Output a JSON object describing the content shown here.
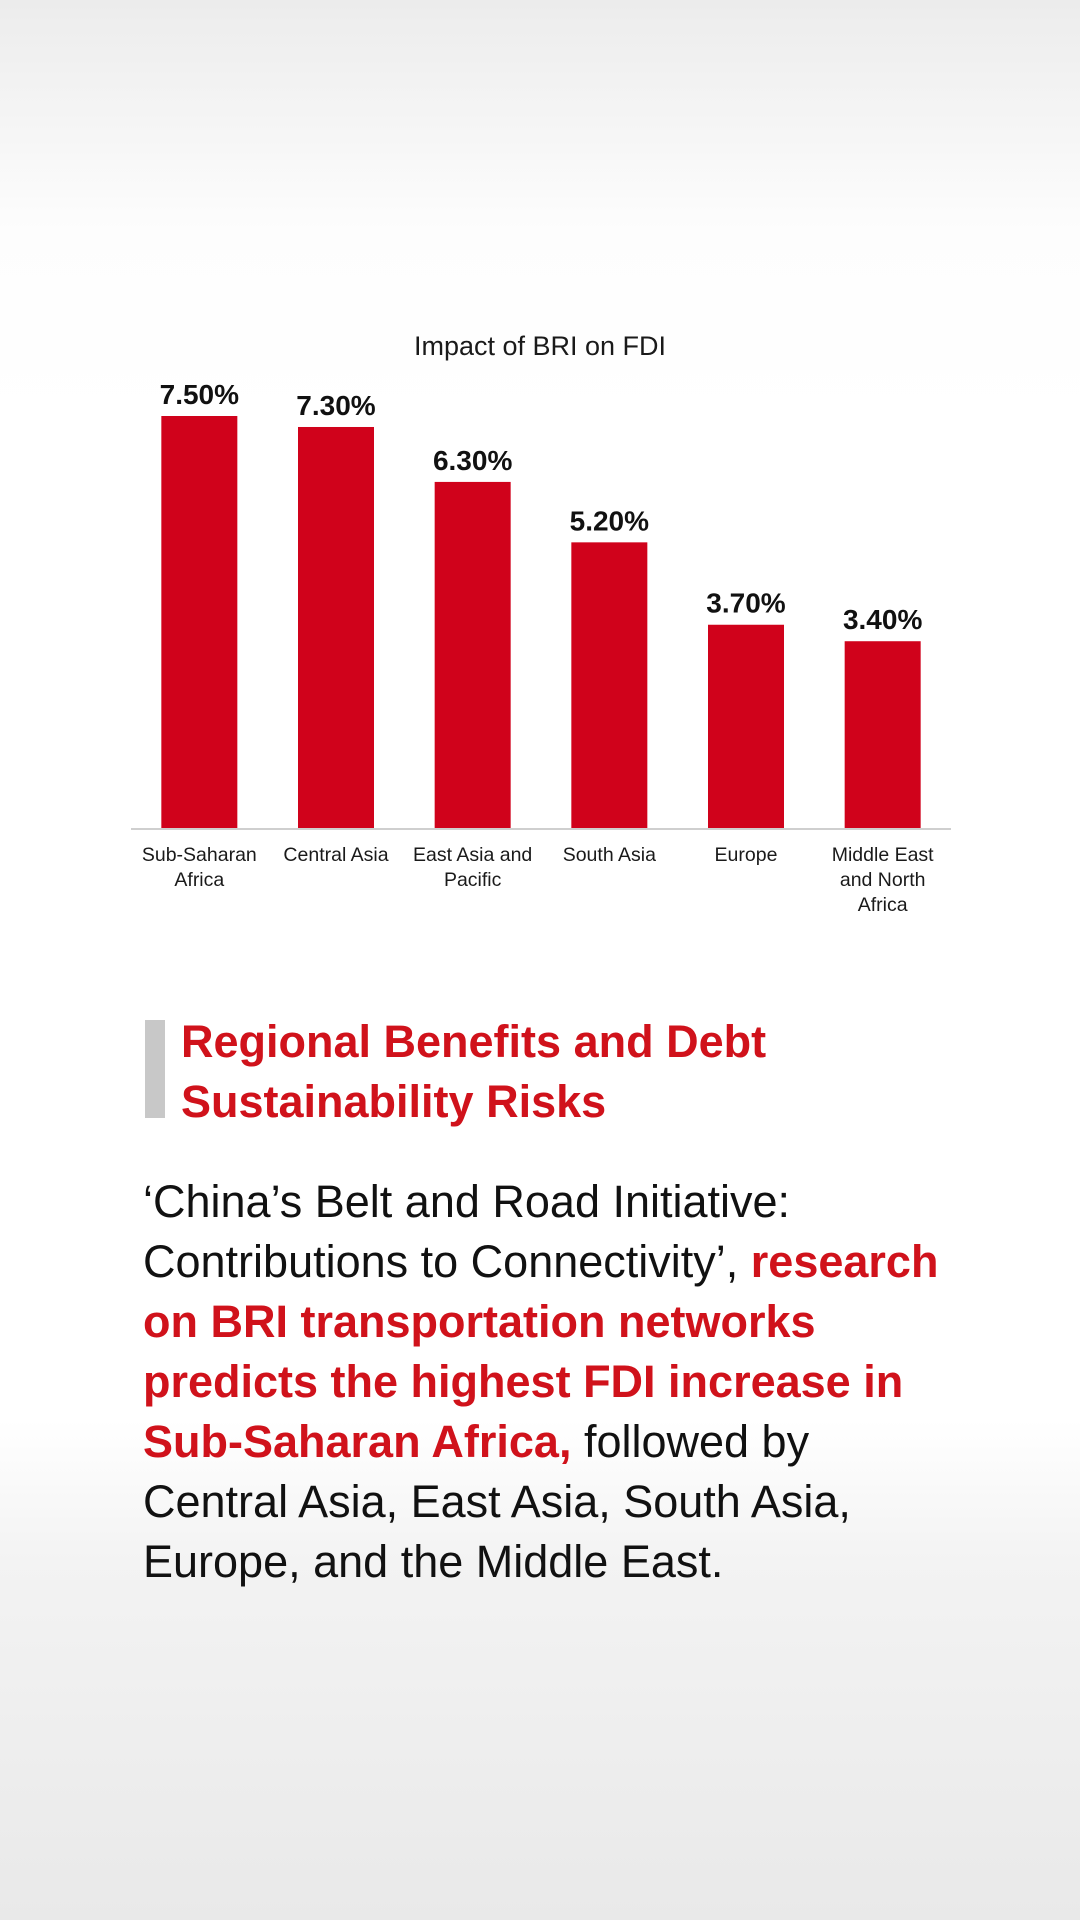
{
  "chart_data": {
    "type": "bar",
    "title": "Impact of BRI on FDI",
    "categories": [
      [
        "Sub-Saharan",
        "Africa"
      ],
      [
        "Central Asia"
      ],
      [
        "East Asia and",
        "Pacific"
      ],
      [
        "South Asia"
      ],
      [
        "Europe"
      ],
      [
        "Middle East",
        "and North",
        "Africa"
      ]
    ],
    "values": [
      7.5,
      7.3,
      6.3,
      5.2,
      3.7,
      3.4
    ],
    "value_labels": [
      "7.50%",
      "7.30%",
      "6.30%",
      "5.20%",
      "3.70%",
      "3.40%"
    ],
    "ylim": [
      0,
      7.5
    ],
    "grid": false,
    "legend": "none",
    "bar_color": "#d0021b",
    "axis_color": "#cfcfcf"
  },
  "section": {
    "heading": "Regional Benefits and Debt Sustainability Risks",
    "body_part1": "‘China’s Belt and Road Initiative: Contributions to Connectivity’, ",
    "body_highlight": "research on BRI transportation networks predicts the highest FDI increase in Sub-Saharan Africa,",
    "body_part2": " followed by Central Asia, East Asia, South Asia, Europe, and the Middle East."
  },
  "colors": {
    "accent": "#d0121b",
    "heading_marker": "#c8c8c8",
    "text": "#111111"
  }
}
